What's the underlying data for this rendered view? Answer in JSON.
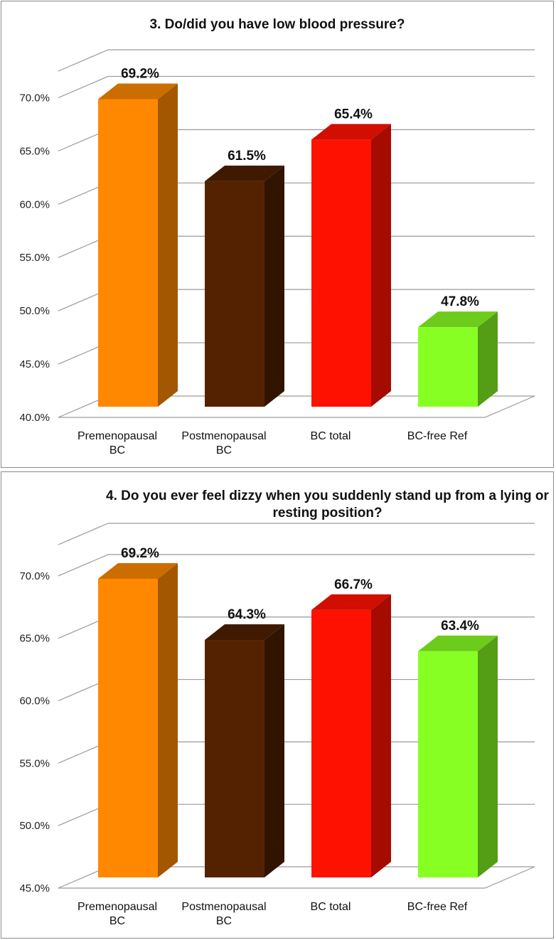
{
  "colors": {
    "premenopausal": "#ff8800",
    "postmenopausal": "#552200",
    "bc_total": "#ff1100",
    "bc_free_ref": "#88ff22",
    "grid": "#9a9a9a"
  },
  "chart_data": [
    {
      "type": "bar",
      "title": "3. Do/did you have low blood pressure?",
      "categories": [
        [
          "Premenopausal",
          "BC"
        ],
        [
          "Postmenopausal",
          "BC"
        ],
        [
          "BC total"
        ],
        [
          "BC-free Ref"
        ]
      ],
      "values": [
        69.2,
        61.5,
        65.4,
        47.8
      ],
      "data_labels": [
        "69.2%",
        "61.5%",
        "65.4%",
        "47.8%"
      ],
      "y_ticks": [
        "40.0%",
        "45.0%",
        "50.0%",
        "55.0%",
        "60.0%",
        "65.0%",
        "70.0%"
      ],
      "ylim": [
        40,
        72.5
      ],
      "grid": true,
      "legend": "none"
    },
    {
      "type": "bar",
      "title": "4. Do you ever feel dizzy when you suddenly stand up from a lying or resting position?",
      "categories": [
        [
          "Premenopausal",
          "BC"
        ],
        [
          "Postmenopausal",
          "BC"
        ],
        [
          "BC total"
        ],
        [
          "BC-free Ref"
        ]
      ],
      "values": [
        69.2,
        64.3,
        66.7,
        63.4
      ],
      "data_labels": [
        "69.2%",
        "64.3%",
        "66.7%",
        "63.4%"
      ],
      "y_ticks": [
        "45.0%",
        "50.0%",
        "55.0%",
        "60.0%",
        "65.0%",
        "70.0%"
      ],
      "ylim": [
        45,
        72.5
      ],
      "grid": true,
      "legend": "none"
    }
  ]
}
